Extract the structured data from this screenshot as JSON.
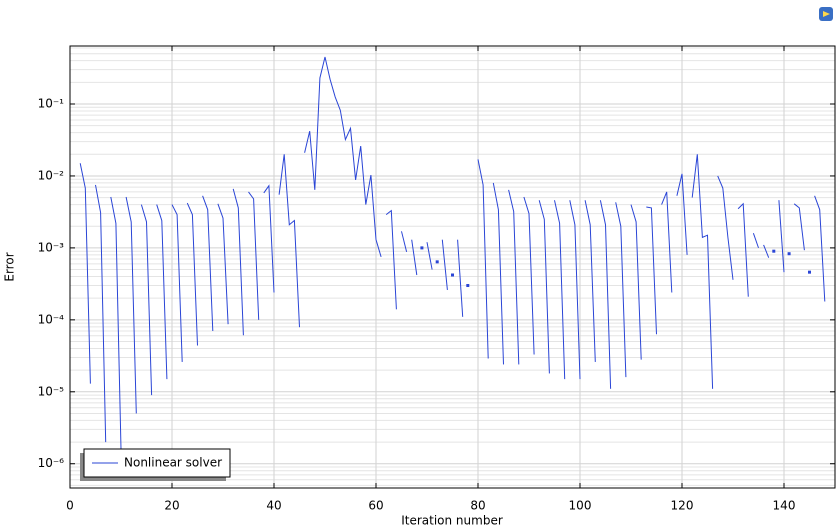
{
  "chart_data": {
    "type": "line",
    "x_label": "Iteration number",
    "y_label": "Error",
    "xlim": [
      0,
      150
    ],
    "ylim": [
      4.6e-07,
      0.64
    ],
    "xticks": [
      0,
      20,
      40,
      60,
      80,
      100,
      120,
      140
    ],
    "yticks": [
      {
        "value": 1e-06,
        "label": "10⁻⁶"
      },
      {
        "value": 1e-05,
        "label": "10⁻⁵"
      },
      {
        "value": 0.0001,
        "label": "10⁻⁴"
      },
      {
        "value": 0.001,
        "label": "10⁻³"
      },
      {
        "value": 0.01,
        "label": "10⁻²"
      },
      {
        "value": 0.1,
        "label": "10⁻¹"
      }
    ],
    "log_y": true,
    "grid": true,
    "legend": "lower left",
    "x": [
      2,
      3,
      4,
      null,
      5,
      6,
      7,
      null,
      8,
      9,
      10,
      null,
      11,
      12,
      13,
      null,
      14,
      15,
      16,
      null,
      17,
      18,
      19,
      null,
      20,
      21,
      22,
      null,
      23,
      24,
      25,
      null,
      26,
      27,
      28,
      null,
      29,
      30,
      31,
      null,
      32,
      33,
      34,
      null,
      35,
      36,
      37,
      null,
      38,
      39,
      40,
      null,
      41,
      42,
      43,
      44,
      45,
      null,
      46,
      47,
      48,
      49,
      50,
      51,
      52,
      53,
      54,
      55,
      56,
      57,
      58,
      59,
      60,
      61,
      null,
      62,
      63,
      64,
      null,
      65,
      66,
      null,
      67,
      68,
      null,
      69,
      null,
      70,
      71,
      null,
      72,
      null,
      73,
      74,
      null,
      75,
      null,
      76,
      77,
      null,
      78,
      null,
      80,
      81,
      82,
      null,
      83,
      84,
      85,
      null,
      86,
      87,
      88,
      null,
      89,
      90,
      91,
      null,
      92,
      93,
      94,
      null,
      95,
      96,
      97,
      null,
      98,
      99,
      100,
      null,
      101,
      102,
      103,
      null,
      104,
      105,
      106,
      null,
      107,
      108,
      109,
      null,
      110,
      111,
      112,
      null,
      113,
      114,
      115,
      null,
      116,
      117,
      118,
      null,
      119,
      120,
      121,
      null,
      122,
      123,
      124,
      125,
      126,
      null,
      127,
      128,
      129,
      130,
      null,
      131,
      132,
      133,
      null,
      134,
      135,
      null,
      136,
      137,
      null,
      138,
      null,
      139,
      140,
      null,
      141,
      null,
      142,
      143,
      144,
      null,
      145,
      null,
      146,
      147,
      148
    ],
    "series": [
      {
        "name": "Nonlinear solver",
        "color": "#2a45d6",
        "values": [
          0.015,
          0.0068,
          1.3e-05,
          null,
          0.0075,
          0.0031,
          2e-06,
          null,
          0.0051,
          0.0022,
          1.6e-06,
          null,
          0.0051,
          0.0023,
          5e-06,
          null,
          0.004,
          0.0023,
          9e-06,
          null,
          0.004,
          0.0024,
          1.5e-05,
          null,
          0.004,
          0.0029,
          2.6e-05,
          null,
          0.0042,
          0.0029,
          4.4e-05,
          null,
          0.0053,
          0.0034,
          7e-05,
          null,
          0.0041,
          0.0026,
          8.7e-05,
          null,
          0.0066,
          0.0036,
          6.1e-05,
          null,
          0.006,
          0.0048,
          0.0001,
          null,
          0.0058,
          0.0073,
          0.00024,
          null,
          0.0055,
          0.02,
          0.0021,
          0.0024,
          7.9e-05,
          null,
          0.021,
          0.042,
          0.0064,
          0.23,
          0.45,
          0.22,
          0.125,
          0.082,
          0.032,
          0.046,
          0.0088,
          0.026,
          0.004,
          0.0103,
          0.0013,
          0.00075,
          null,
          0.0029,
          0.0033,
          0.00014,
          null,
          0.0017,
          0.00088,
          null,
          0.0013,
          0.00042,
          null,
          0.001,
          null,
          0.0012,
          0.0005,
          null,
          0.00064,
          null,
          0.0013,
          0.00026,
          null,
          0.00042,
          null,
          0.0013,
          0.00011,
          null,
          0.0003,
          null,
          0.017,
          0.0075,
          2.9e-05,
          null,
          0.008,
          0.0034,
          2.4e-05,
          null,
          0.0064,
          0.0032,
          2.4e-05,
          null,
          0.0051,
          0.003,
          3.3e-05,
          null,
          0.0046,
          0.0025,
          1.8e-05,
          null,
          0.0046,
          0.0022,
          1.5e-05,
          null,
          0.0046,
          0.0021,
          1.5e-05,
          null,
          0.0046,
          0.0021,
          2.6e-05,
          null,
          0.0046,
          0.0021,
          1.1e-05,
          null,
          0.0043,
          0.002,
          1.6e-05,
          null,
          0.004,
          0.0023,
          2.8e-05,
          null,
          0.0037,
          0.0036,
          6.3e-05,
          null,
          0.004,
          0.006,
          0.00024,
          null,
          0.0053,
          0.0107,
          0.0008,
          null,
          0.005,
          0.02,
          0.0014,
          0.0015,
          1.1e-05,
          null,
          0.01,
          0.0068,
          0.0014,
          0.00036,
          null,
          0.0035,
          0.0041,
          0.00021,
          null,
          0.0016,
          0.001,
          null,
          0.0011,
          0.00073,
          null,
          0.0009,
          null,
          0.0046,
          0.00046,
          null,
          0.00083,
          null,
          0.0041,
          0.0036,
          0.00093,
          null,
          0.00046,
          null,
          0.0053,
          0.0034,
          0.00018
        ]
      }
    ]
  }
}
